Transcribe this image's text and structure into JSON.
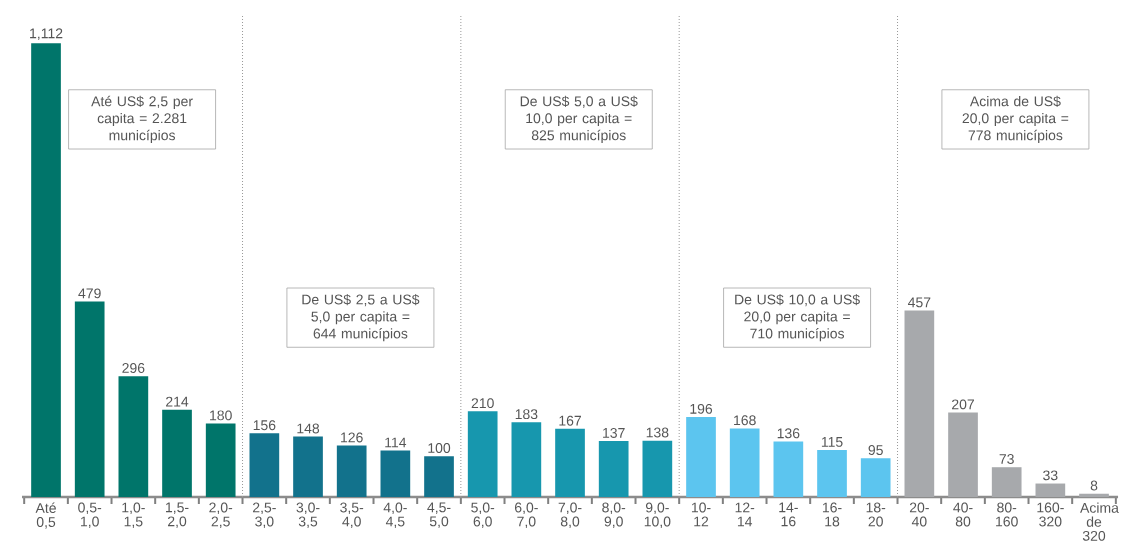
{
  "chart_data": {
    "type": "bar",
    "categories": [
      "Até 0,5",
      "0,5-1,0",
      "1,0-1,5",
      "1,5-2,0",
      "2,0-2,5",
      "2,5-3,0",
      "3,0-3,5",
      "3,5-4,0",
      "4,0-4,5",
      "4,5-5,0",
      "5,0-6,0",
      "6,0-7,0",
      "7,0-8,0",
      "8,0-9,0",
      "9,0-10,0",
      "10-12",
      "12-14",
      "14-16",
      "16-18",
      "18-20",
      "20-40",
      "40-80",
      "80-160",
      "160-320",
      "Acima de 320"
    ],
    "values": [
      1112,
      479,
      296,
      214,
      180,
      156,
      148,
      126,
      114,
      100,
      210,
      183,
      167,
      137,
      138,
      196,
      168,
      136,
      115,
      95,
      457,
      207,
      73,
      33,
      8
    ],
    "value_labels": [
      "1,112",
      "479",
      "296",
      "214",
      "180",
      "156",
      "148",
      "126",
      "114",
      "100",
      "210",
      "183",
      "167",
      "137",
      "138",
      "196",
      "168",
      "136",
      "115",
      "95",
      "457",
      "207",
      "73",
      "33",
      "8"
    ],
    "colors": [
      "#00756a",
      "#00756a",
      "#00756a",
      "#00756a",
      "#00756a",
      "#12728c",
      "#12728c",
      "#12728c",
      "#12728c",
      "#12728c",
      "#1797ae",
      "#1797ae",
      "#1797ae",
      "#1797ae",
      "#1797ae",
      "#5cc5ef",
      "#5cc5ef",
      "#5cc5ef",
      "#5cc5ef",
      "#5cc5ef",
      "#a7a9ac",
      "#a7a9ac",
      "#a7a9ac",
      "#a7a9ac",
      "#a7a9ac"
    ],
    "annotations": [
      "Até US$ 2,5 per capita = 2.281 municípios",
      "De US$ 2,5 a US$ 5,0 per capita = 644 municípios",
      "De US$ 5,0 a US$ 10,0 per capita = 825 municípios",
      "De US$ 10,0 a US$ 20,0 per capita = 710 municípios",
      "Acima de US$ 20,0 per capita = 778 municípios"
    ],
    "grid": false
  }
}
